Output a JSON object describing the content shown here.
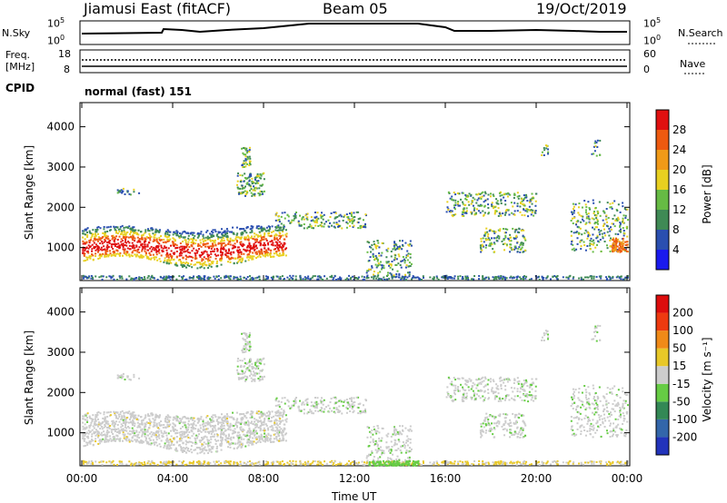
{
  "header": {
    "station": "Jiamusi East (fitACF)",
    "beam": "Beam 05",
    "date": "19/Oct/2019"
  },
  "top_panels": {
    "nsky_label": "N.Sky",
    "nsky_ticks": [
      "10^5",
      "10^0"
    ],
    "nsearch_label": "N.Search",
    "nsearch_ticks": [
      "10^5",
      "10^0"
    ],
    "freq_label_1": "Freq.",
    "freq_label_2": "[MHz]",
    "freq_ticks": [
      "18",
      "8"
    ],
    "nave_label": "Nave",
    "nave_ticks": [
      "60",
      "0"
    ],
    "cpid_label": "CPID",
    "cpid_value": "normal (fast) 151"
  },
  "chart_data": [
    {
      "type": "heatmap",
      "name": "power-panel",
      "ylabel": "Slant Range [km]",
      "yticks": [
        1000,
        2000,
        3000,
        4000
      ],
      "ylim": [
        180,
        4600
      ],
      "xlim_hours": [
        0,
        24
      ],
      "colorbar_label": "Power [dB]",
      "colorbar_ticks": [
        "4",
        "8",
        "12",
        "16",
        "20",
        "24",
        "28"
      ],
      "colorbar_colors": [
        "#1a1aee",
        "#2a4fb0",
        "#3f8a55",
        "#66bb44",
        "#e8d020",
        "#f09a18",
        "#ee5a10",
        "#e01010"
      ]
    },
    {
      "type": "heatmap",
      "name": "velocity-panel",
      "ylabel": "Slant Range [km]",
      "yticks": [
        1000,
        2000,
        3000,
        4000
      ],
      "ylim": [
        180,
        4600
      ],
      "xlim_hours": [
        0,
        24
      ],
      "colorbar_label": "Velocity [m s⁻¹]",
      "colorbar_ticks": [
        "200",
        "100",
        "50",
        "15",
        "-15",
        "-50",
        "-100",
        "-200"
      ],
      "colorbar_colors": [
        "#2233bb",
        "#3366aa",
        "#338855",
        "#66cc44",
        "#cccccc",
        "#e8c828",
        "#f08a18",
        "#ee3a10",
        "#dd0d0d"
      ]
    }
  ],
  "xaxis": {
    "ticks": [
      "00:00",
      "04:00",
      "08:00",
      "12:00",
      "16:00",
      "20:00",
      "00:00"
    ],
    "label": "Time UT"
  }
}
